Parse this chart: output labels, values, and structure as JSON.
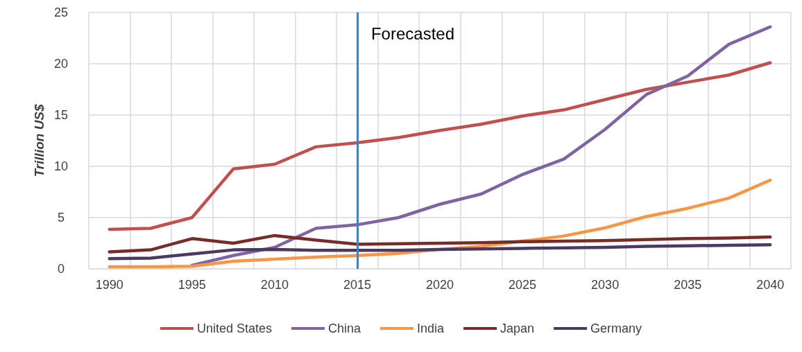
{
  "chart_data": {
    "type": "line",
    "ylabel": "Trillion US$",
    "categories": [
      "1990",
      null,
      "1995",
      null,
      "2010",
      null,
      "2015",
      null,
      "2020",
      null,
      "2025",
      null,
      "2030",
      null,
      "2035",
      null,
      "2040"
    ],
    "series": [
      {
        "name": "United States",
        "color": "#c0504d",
        "values": [
          3.85,
          3.95,
          5.0,
          9.75,
          10.2,
          11.9,
          12.3,
          12.8,
          13.5,
          14.1,
          14.9,
          15.5,
          16.5,
          17.5,
          18.2,
          18.9,
          20.1
        ]
      },
      {
        "name": "China",
        "color": "#8064a2",
        "values": [
          null,
          null,
          0.35,
          1.3,
          2.1,
          3.95,
          4.3,
          5.0,
          6.3,
          7.3,
          9.2,
          10.7,
          13.6,
          17.0,
          18.8,
          21.9,
          23.6
        ]
      },
      {
        "name": "India",
        "color": "#f79646",
        "values": [
          0.2,
          0.2,
          0.25,
          0.75,
          0.95,
          1.15,
          1.3,
          1.5,
          1.9,
          2.2,
          2.7,
          3.2,
          4.0,
          5.1,
          5.9,
          6.9,
          8.65
        ]
      },
      {
        "name": "Japan",
        "color": "#772c2a",
        "values": [
          1.65,
          1.85,
          2.95,
          2.5,
          3.25,
          2.8,
          2.4,
          2.45,
          2.5,
          2.55,
          2.65,
          2.7,
          2.75,
          2.85,
          2.95,
          3.0,
          3.1
        ]
      },
      {
        "name": "Germany",
        "color": "#4a3a62",
        "values": [
          1.0,
          1.05,
          1.45,
          1.85,
          1.9,
          1.8,
          1.8,
          1.8,
          1.9,
          1.95,
          2.0,
          2.05,
          2.1,
          2.2,
          2.25,
          2.3,
          2.35
        ]
      }
    ],
    "ylim": [
      0,
      25
    ],
    "yticks": [
      0,
      5,
      10,
      15,
      20,
      25
    ],
    "ref_lines": [
      {
        "axis": "x",
        "value": "2015",
        "label": "Forecasted",
        "color": "#4a7ebb"
      }
    ],
    "grid": true,
    "legend": "bottom",
    "marker": "none",
    "line_style": "solid"
  }
}
